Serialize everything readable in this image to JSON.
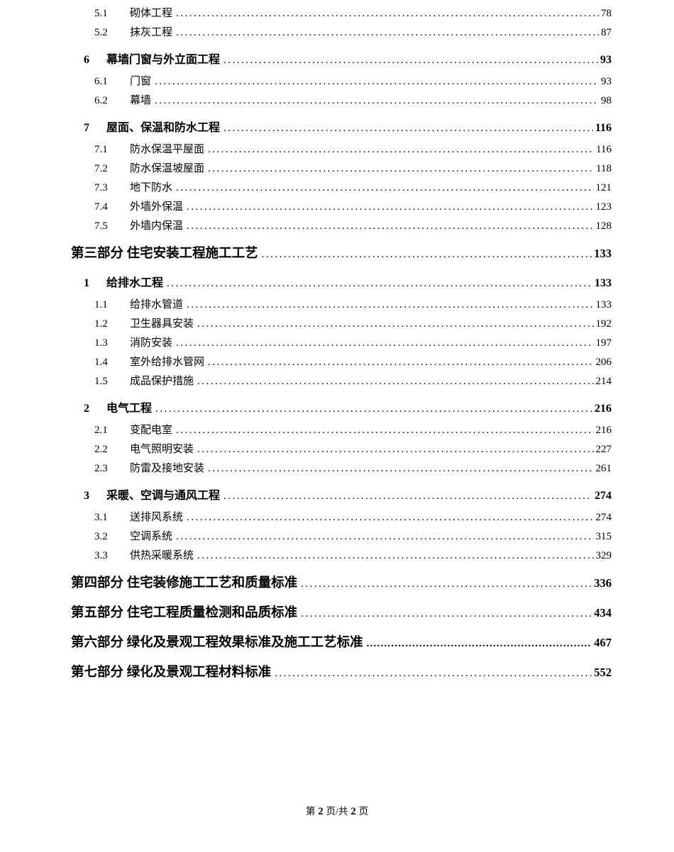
{
  "document": {
    "background": "#ffffff",
    "text_color": "#000000"
  },
  "toc": {
    "entries": [
      {
        "level": 3,
        "number": "5.1",
        "title": "砌体工程",
        "page": "78"
      },
      {
        "level": 3,
        "number": "5.2",
        "title": "抹灰工程",
        "page": "87"
      },
      {
        "level": 2,
        "number": "6",
        "title": "幕墙门窗与外立面工程",
        "page": "93"
      },
      {
        "level": 3,
        "number": "6.1",
        "title": "门窗",
        "page": "93"
      },
      {
        "level": 3,
        "number": "6.2",
        "title": "幕墙",
        "page": "98"
      },
      {
        "level": 2,
        "number": "7",
        "title": "屋面、保温和防水工程",
        "page": "116"
      },
      {
        "level": 3,
        "number": "7.1",
        "title": "防水保温平屋面",
        "page": "116"
      },
      {
        "level": 3,
        "number": "7.2",
        "title": "防水保温坡屋面",
        "page": "118"
      },
      {
        "level": 3,
        "number": "7.3",
        "title": "地下防水",
        "page": "121"
      },
      {
        "level": 3,
        "number": "7.4",
        "title": "外墙外保温",
        "page": "123"
      },
      {
        "level": 3,
        "number": "7.5",
        "title": "外墙内保温",
        "page": "128"
      },
      {
        "level": 1,
        "number": "",
        "title": "第三部分 住宅安装工程施工工艺",
        "page": "133"
      },
      {
        "level": 2,
        "number": "1",
        "title": "给排水工程",
        "page": "133"
      },
      {
        "level": 3,
        "number": "1.1",
        "title": "给排水管道",
        "page": "133"
      },
      {
        "level": 3,
        "number": "1.2",
        "title": "卫生器具安装",
        "page": "192"
      },
      {
        "level": 3,
        "number": "1.3",
        "title": "消防安装",
        "page": "197"
      },
      {
        "level": 3,
        "number": "1.4",
        "title": "室外给排水管网",
        "page": "206"
      },
      {
        "level": 3,
        "number": "1.5",
        "title": "成品保护措施",
        "page": "214"
      },
      {
        "level": 2,
        "number": "2",
        "title": "电气工程",
        "page": "216"
      },
      {
        "level": 3,
        "number": "2.1",
        "title": "变配电室",
        "page": "216"
      },
      {
        "level": 3,
        "number": "2.2",
        "title": "电气照明安装",
        "page": "227"
      },
      {
        "level": 3,
        "number": "2.3",
        "title": "防雷及接地安装",
        "page": "261"
      },
      {
        "level": 2,
        "number": "3",
        "title": "采暖、空调与通风工程",
        "page": "274"
      },
      {
        "level": 3,
        "number": "3.1",
        "title": "送排风系统",
        "page": "274"
      },
      {
        "level": 3,
        "number": "3.2",
        "title": "空调系统",
        "page": "315"
      },
      {
        "level": 3,
        "number": "3.3",
        "title": "供热采暖系统",
        "page": "329"
      },
      {
        "level": 1,
        "number": "",
        "title": "第四部分 住宅装修施工工艺和质量标准",
        "page": "336"
      },
      {
        "level": 1,
        "number": "",
        "title": "第五部分 住宅工程质量检测和品质标准",
        "page": "434"
      },
      {
        "level": 1,
        "number": "",
        "title": "第六部分 绿化及景观工程效果标准及施工工艺标准",
        "page": "467",
        "bold_leader": true
      },
      {
        "level": 1,
        "number": "",
        "title": "第七部分 绿化及景观工程材料标准",
        "page": "552"
      }
    ]
  },
  "footer": {
    "prefix": "第",
    "page_number": "2",
    "separator": "页/共",
    "total_pages": "2",
    "suffix": "页"
  }
}
